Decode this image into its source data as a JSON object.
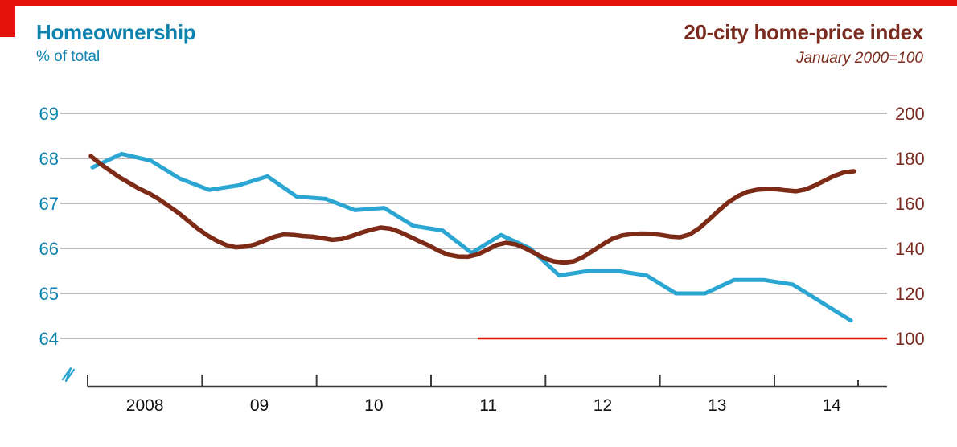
{
  "header": {
    "left": {
      "title": "Homeownership",
      "subtitle": "% of total"
    },
    "right": {
      "title": "20-city home-price index",
      "subtitle": "January 2000=100"
    }
  },
  "colors": {
    "brand_red": "#E3120B",
    "blue_text": "#0F83B0",
    "maroon_text": "#7A2B20",
    "line_blue": "#2BA6D2",
    "line_brown": "#7D2A16",
    "gridline": "#BBBBBB",
    "axis": "#3A3A3A",
    "year_label": "#111111",
    "baseline_100": "#E3120B"
  },
  "chart_data": {
    "type": "line",
    "title": "Homeownership / 20-city home-price index",
    "x_axis": {
      "year_labels": [
        "2008",
        "09",
        "10",
        "11",
        "12",
        "13",
        "14"
      ]
    },
    "left_axis": {
      "label": "% of total",
      "tick_labels": [
        "69",
        "68",
        "67",
        "66",
        "65",
        "64"
      ],
      "range": [
        64,
        69
      ],
      "axis_break_marker": true
    },
    "right_axis": {
      "label": "January 2000=100",
      "tick_labels": [
        "200",
        "180",
        "160",
        "140",
        "120",
        "100"
      ],
      "range": [
        100,
        200
      ],
      "baseline_100_highlighted": true
    },
    "grid": "horizontal-only",
    "legend_position": "none (titles act as legend)",
    "series": [
      {
        "name": "Homeownership, % of total",
        "axis": "left",
        "freq": "quarterly",
        "start": "2008 Q1",
        "end": "2014 Q3",
        "values": [
          67.8,
          68.1,
          67.95,
          67.55,
          67.3,
          67.4,
          67.6,
          67.15,
          67.1,
          66.85,
          66.9,
          66.5,
          66.4,
          65.9,
          66.3,
          66.0,
          65.4,
          65.5,
          65.5,
          65.4,
          65.0,
          65.0,
          65.3,
          65.3,
          65.2,
          64.8,
          64.4
        ]
      },
      {
        "name": "20-city home-price index, January 2000=100",
        "axis": "right",
        "freq": "monthly",
        "start": "2008-01",
        "end": "2014-08",
        "values": [
          181,
          177.5,
          174.5,
          171.5,
          169,
          166.5,
          164.5,
          162,
          159,
          156,
          152.5,
          149,
          146,
          143.5,
          141.5,
          140.5,
          140.8,
          141.8,
          143.5,
          145.2,
          146.2,
          146.0,
          145.5,
          145.2,
          144.5,
          143.8,
          144.2,
          145.5,
          147,
          148.3,
          149.3,
          148.8,
          147.3,
          145.3,
          143.2,
          141.3,
          139,
          137.2,
          136.4,
          136.3,
          137.3,
          139.3,
          141.5,
          142.5,
          141.8,
          140,
          137.8,
          135.5,
          134.2,
          133.7,
          134.3,
          136.2,
          139,
          141.8,
          144.3,
          145.8,
          146.4,
          146.6,
          146.5,
          146,
          145.3,
          145,
          146.2,
          149,
          152.8,
          156.8,
          160.5,
          163.3,
          165.2,
          166.1,
          166.4,
          166.3,
          165.8,
          165.4,
          166.2,
          168,
          170.2,
          172.3,
          173.8,
          174.3
        ]
      }
    ]
  }
}
